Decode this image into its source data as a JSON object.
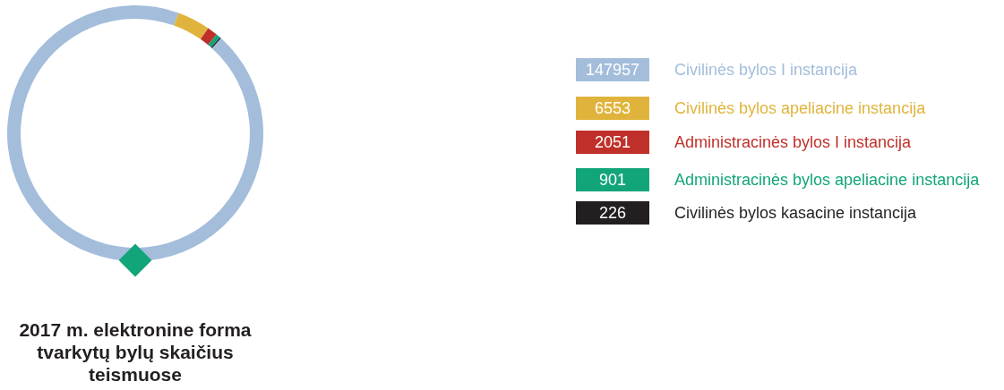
{
  "chart_data": {
    "type": "donut",
    "title": "2017 m. elektronine forma tvarkytų bylų skaičius teismuose",
    "categories": [
      "Civilinės bylos I instancija",
      "Civilinės bylos apeliacine instancija",
      "Administracinės bylos I instancija",
      "Administracinės bylos apeliacine instancija",
      "Civilinės bylos kasacine instancija"
    ],
    "values": [
      147957,
      6553,
      2051,
      901,
      226
    ],
    "colors": [
      "#a3bddb",
      "#e0b43c",
      "#c0302a",
      "#13a57a",
      "#231f20"
    ],
    "legend": "right",
    "data_labels": true
  }
}
